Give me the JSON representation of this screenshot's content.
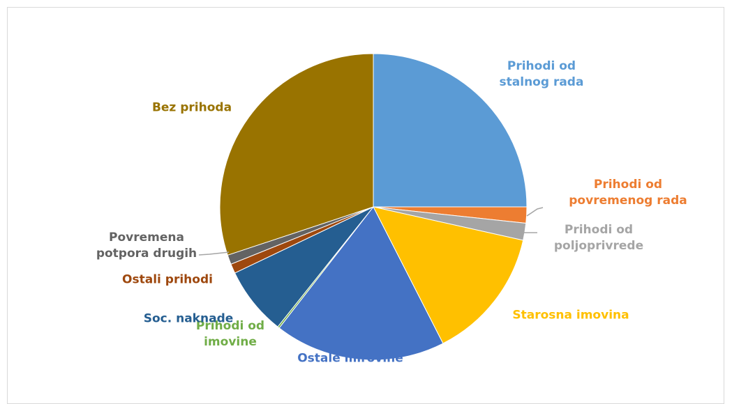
{
  "chart_data": {
    "type": "pie",
    "categories": [
      "Prihodi od stalnog rada",
      "Prihodi od povremenog rada",
      "Prihodi od poljoprivrede",
      "Starosna imovina",
      "Ostale mirovine",
      "Prihodi od imovine",
      "Soc. naknade",
      "Ostali prihodi",
      "Povremena potpora drugih",
      "Bez prihoda"
    ],
    "values": [
      25,
      1.7,
      1.8,
      14,
      18,
      0.2,
      7.2,
      1,
      1,
      30.1
    ],
    "colors": [
      "#5b9bd5",
      "#ed7d31",
      "#a5a5a5",
      "#ffc000",
      "#4472c4",
      "#70ad47",
      "#255e91",
      "#9e480e",
      "#636363",
      "#997300"
    ]
  }
}
